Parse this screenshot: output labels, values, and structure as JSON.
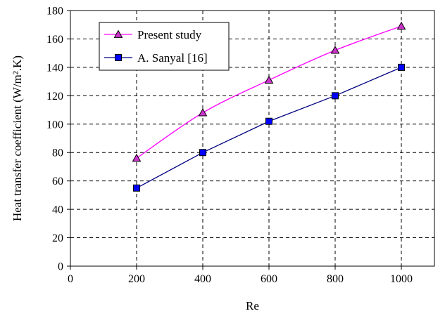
{
  "chart_data": {
    "type": "line",
    "title": "",
    "xlabel": "Re",
    "ylabel": "Heat transfer coefficient (W/m².K)",
    "xlim": [
      0,
      1100
    ],
    "ylim": [
      0,
      180
    ],
    "x_ticks": [
      0,
      200,
      400,
      600,
      800,
      1000
    ],
    "y_ticks": [
      0,
      20,
      40,
      60,
      80,
      100,
      120,
      140,
      160,
      180
    ],
    "grid": true,
    "grid_style": "dashed",
    "legend_position": "top-left",
    "series": [
      {
        "name": "Present study",
        "color": "#ff00ff",
        "marker": "triangle",
        "marker_fill": "#cc33cc",
        "smooth": true,
        "x": [
          200,
          400,
          600,
          800,
          1000
        ],
        "y": [
          76,
          108,
          131,
          152,
          169
        ]
      },
      {
        "name": "A. Sanyal [16]",
        "color": "#000080",
        "marker": "square",
        "marker_fill": "#0000ff",
        "smooth": false,
        "x": [
          200,
          400,
          600,
          800,
          1000
        ],
        "y": [
          55,
          80,
          102,
          120,
          140
        ]
      }
    ]
  }
}
